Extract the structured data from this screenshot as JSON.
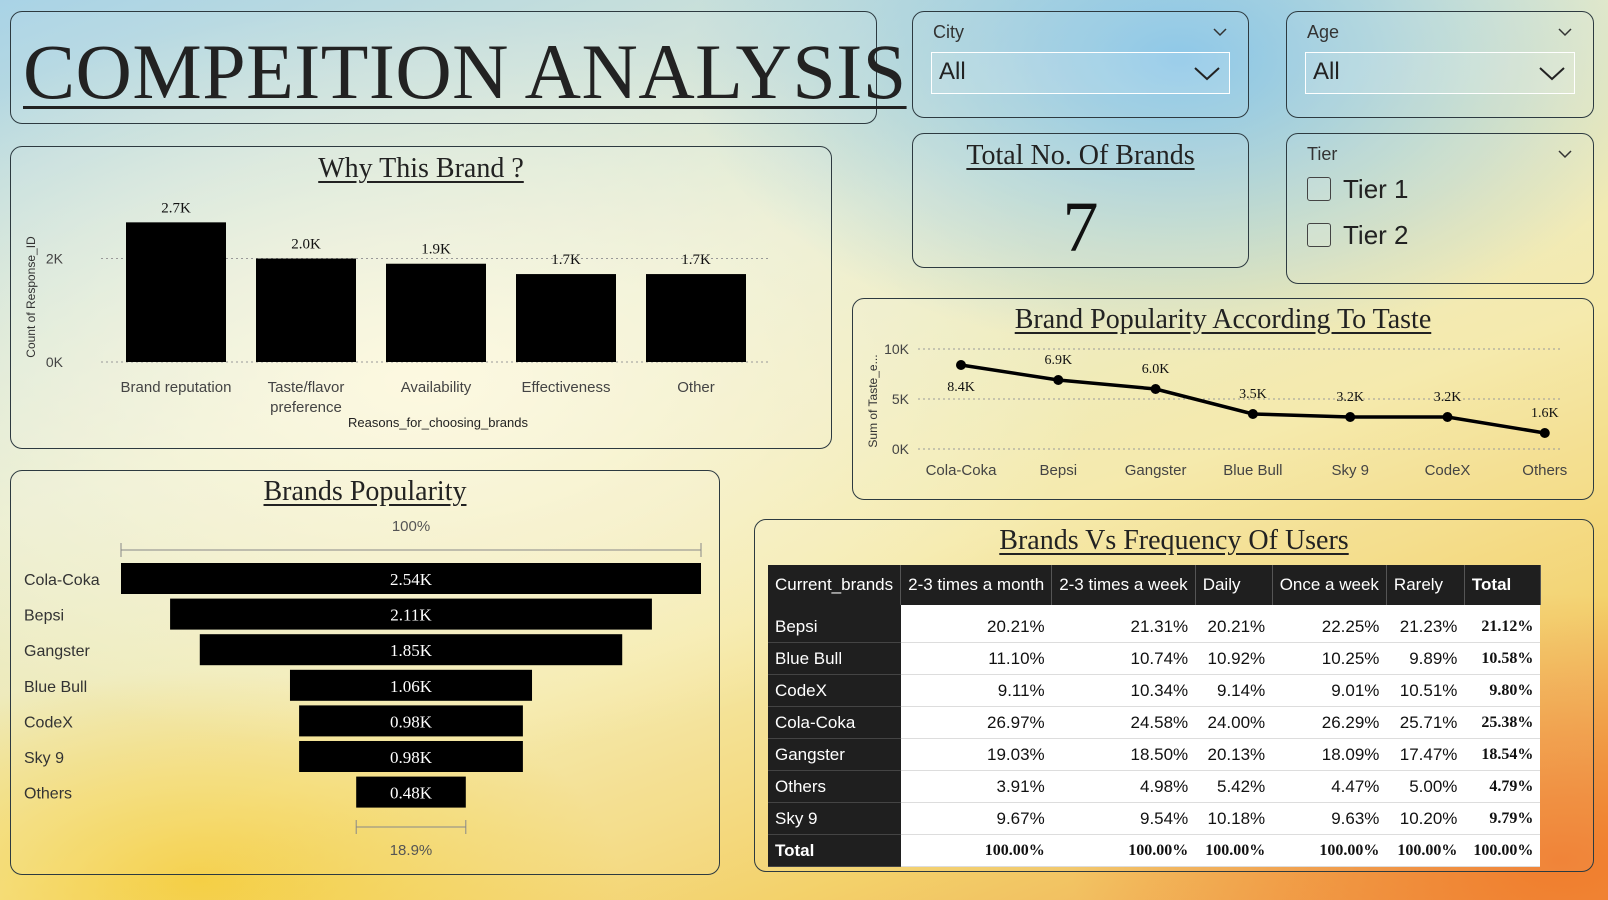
{
  "title": "COMPEITION ANALYSIS",
  "slicers": {
    "city": {
      "label": "City",
      "value": "All"
    },
    "age": {
      "label": "Age",
      "value": "All"
    },
    "tier": {
      "label": "Tier",
      "options": [
        "Tier 1",
        "Tier 2"
      ]
    }
  },
  "kpi": {
    "title": "Total No. Of Brands",
    "value": "7"
  },
  "icons": {
    "dropdown": "chevron-down-icon",
    "checkbox": "checkbox-icon"
  },
  "chart_data": [
    {
      "id": "why_brand",
      "type": "bar",
      "title": "Why This Brand ?",
      "categories": [
        "Brand reputation",
        "Taste/flavor preference",
        "Availability",
        "Effectiveness",
        "Other"
      ],
      "category_lines": [
        [
          "Brand reputation"
        ],
        [
          "Taste/flavor",
          "preference"
        ],
        [
          "Availability"
        ],
        [
          "Effectiveness"
        ],
        [
          "Other"
        ]
      ],
      "values": [
        2700,
        2000,
        1900,
        1700,
        1700
      ],
      "data_labels": [
        "2.7K",
        "2.0K",
        "1.9K",
        "1.7K",
        "1.7K"
      ],
      "xlabel": "Reasons_for_choosing_brands",
      "ylabel": "Count of Response_ID",
      "yticks": [
        "0K",
        "2K"
      ],
      "ylim": [
        0,
        2900
      ],
      "grid": true,
      "color": "#000000"
    },
    {
      "id": "taste_popularity",
      "type": "line",
      "title": "Brand Popularity According To Taste",
      "categories": [
        "Cola-Coka",
        "Bepsi",
        "Gangster",
        "Blue Bull",
        "Sky 9",
        "CodeX",
        "Others"
      ],
      "values": [
        8400,
        6900,
        6000,
        3500,
        3200,
        3200,
        1600
      ],
      "data_labels": [
        "8.4K",
        "6.9K",
        "6.0K",
        "3.5K",
        "3.2K",
        "3.2K",
        "1.6K"
      ],
      "ylabel": "Sum of Taste_e...",
      "yticks": [
        "0K",
        "5K",
        "10K"
      ],
      "ylim": [
        0,
        10000
      ],
      "grid": true,
      "color": "#000000"
    },
    {
      "id": "brands_popularity",
      "type": "bar",
      "subtype": "funnel",
      "title": "Brands Popularity",
      "categories": [
        "Cola-Coka",
        "Bepsi",
        "Gangster",
        "Blue Bull",
        "CodeX",
        "Sky 9",
        "Others"
      ],
      "values": [
        2540,
        2110,
        1850,
        1060,
        980,
        980,
        480
      ],
      "data_labels": [
        "2.54K",
        "2.11K",
        "1.85K",
        "1.06K",
        "0.98K",
        "0.98K",
        "0.48K"
      ],
      "top_percent": "100%",
      "bottom_percent": "18.9%",
      "color": "#000000"
    },
    {
      "id": "brands_vs_frequency",
      "type": "table",
      "title": "Brands Vs Frequency Of Users",
      "columns": [
        "Current_brands",
        "2-3 times a month",
        "2-3 times a week",
        "Daily",
        "Once a week",
        "Rarely",
        "Total"
      ],
      "rows": [
        [
          "Bepsi",
          "20.21%",
          "21.31%",
          "20.21%",
          "22.25%",
          "21.23%",
          "21.12%"
        ],
        [
          "Blue Bull",
          "11.10%",
          "10.74%",
          "10.92%",
          "10.25%",
          "9.89%",
          "10.58%"
        ],
        [
          "CodeX",
          "9.11%",
          "10.34%",
          "9.14%",
          "9.01%",
          "10.51%",
          "9.80%"
        ],
        [
          "Cola-Coka",
          "26.97%",
          "24.58%",
          "24.00%",
          "26.29%",
          "25.71%",
          "25.38%"
        ],
        [
          "Gangster",
          "19.03%",
          "18.50%",
          "20.13%",
          "18.09%",
          "17.47%",
          "18.54%"
        ],
        [
          "Others",
          "3.91%",
          "4.98%",
          "5.42%",
          "4.47%",
          "5.00%",
          "4.79%"
        ],
        [
          "Sky 9",
          "9.67%",
          "9.54%",
          "10.18%",
          "9.63%",
          "10.20%",
          "9.79%"
        ]
      ],
      "total_row": [
        "Total",
        "100.00%",
        "100.00%",
        "100.00%",
        "100.00%",
        "100.00%",
        "100.00%"
      ]
    }
  ]
}
